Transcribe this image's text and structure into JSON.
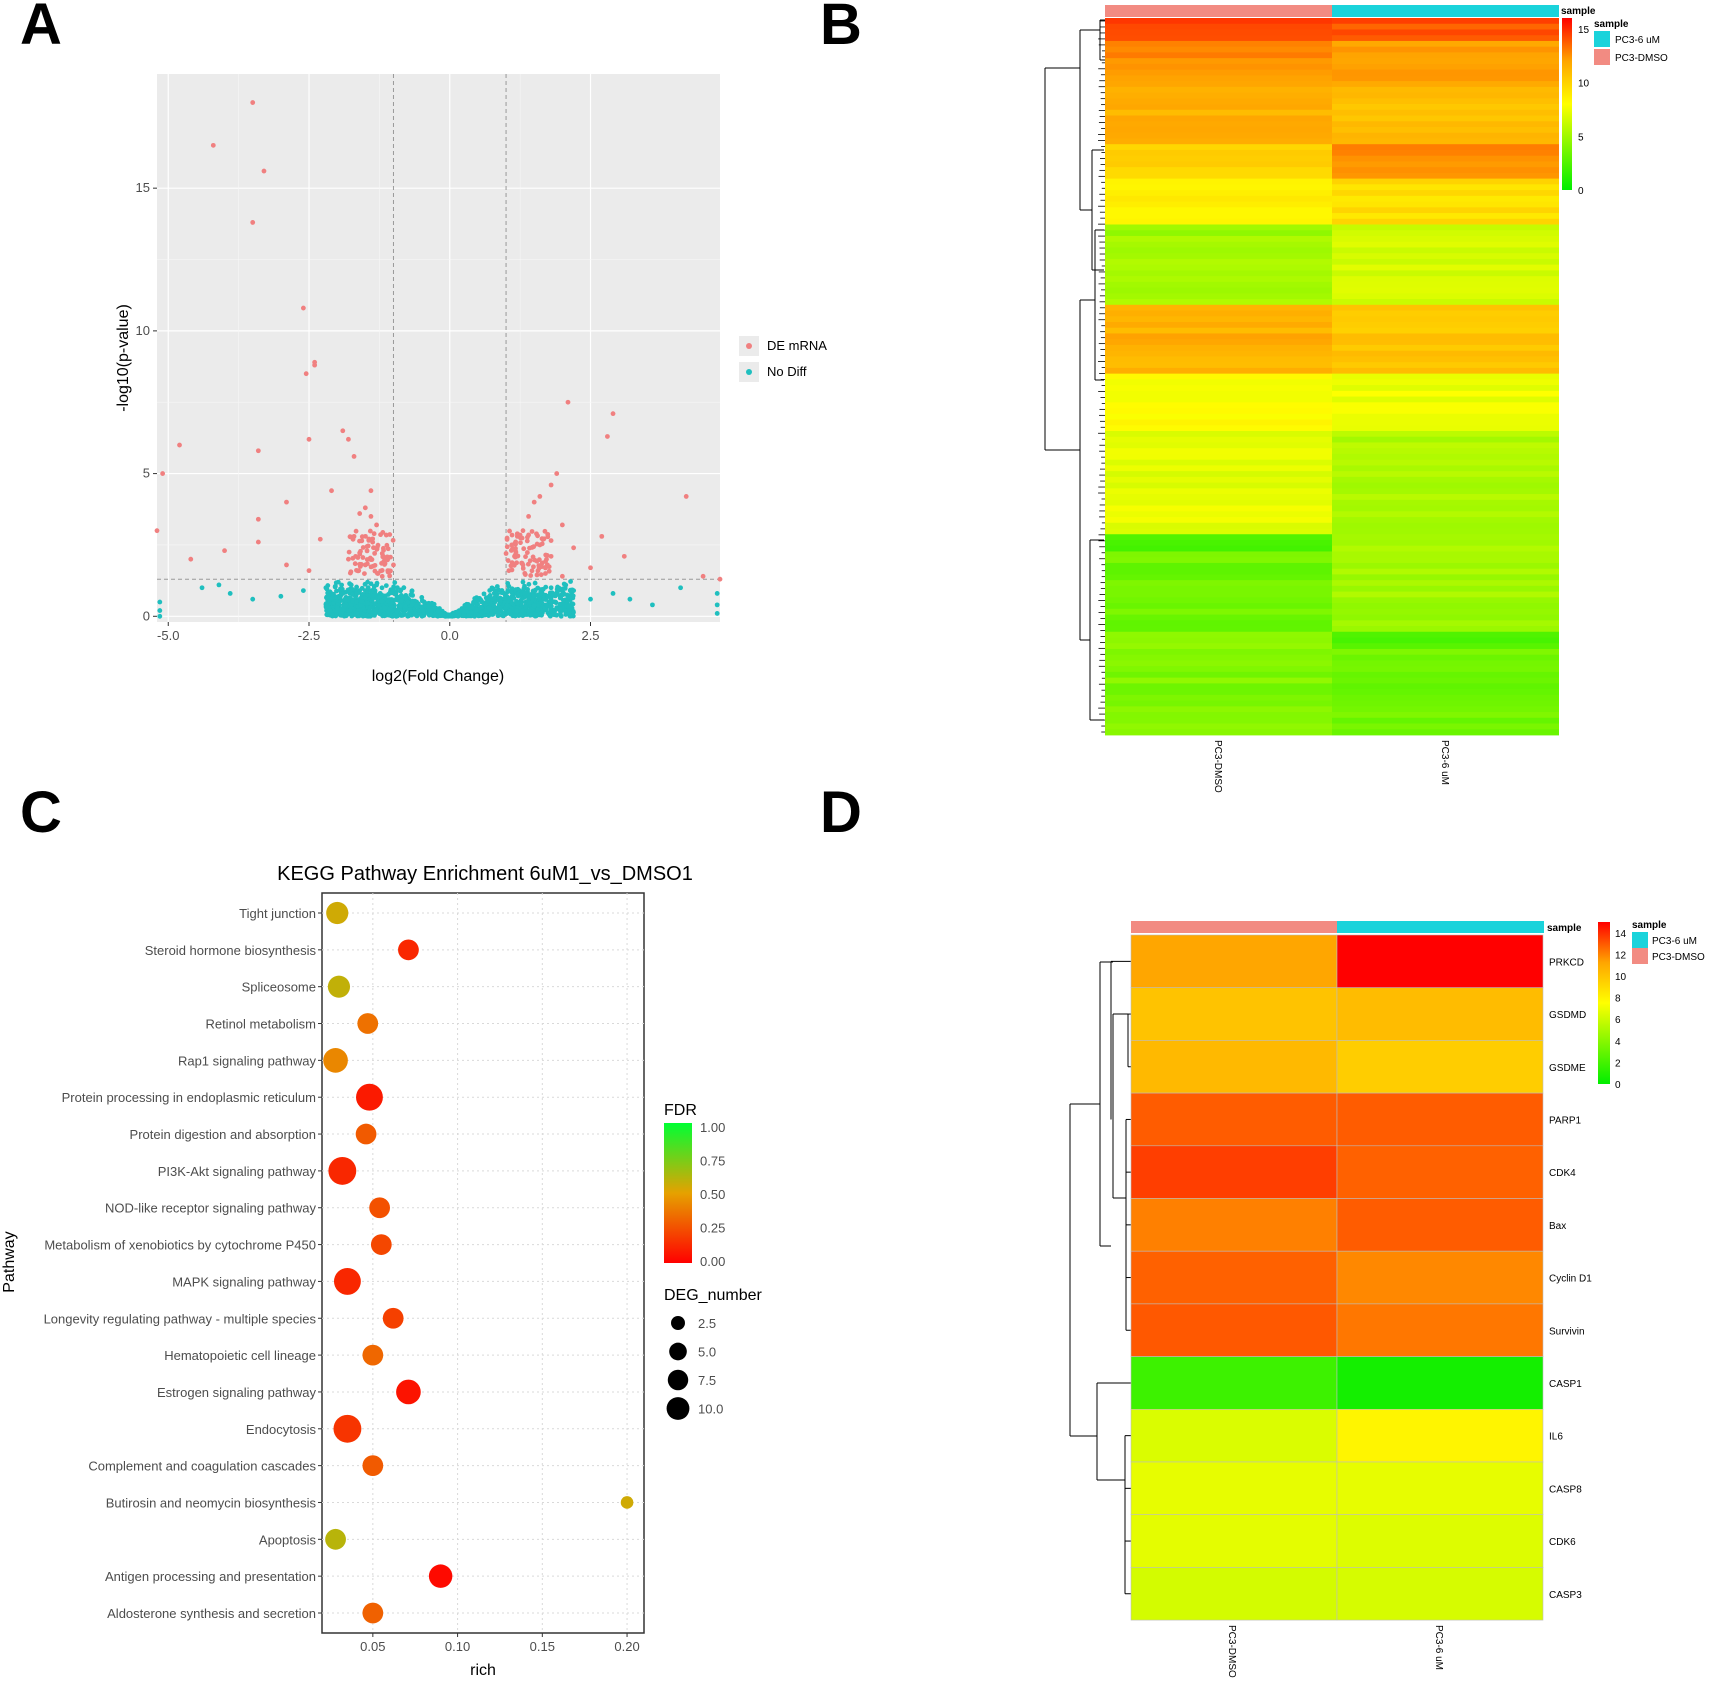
{
  "panels": {
    "a": "A",
    "b": "B",
    "c": "C",
    "d": "D"
  },
  "chart_data": [
    {
      "panel": "A",
      "type": "scatter",
      "xlabel": "log2(Fold Change)",
      "ylabel": "-log10(p-value)",
      "xlim": [
        -5.2,
        4.8
      ],
      "ylim": [
        -0.2,
        19
      ],
      "xticks": [
        -5.0,
        -2.5,
        0.0,
        2.5
      ],
      "xtick_labels": [
        "-5.0",
        "-2.5",
        "0.0",
        "2.5"
      ],
      "yticks": [
        0,
        5,
        10,
        15
      ],
      "ytick_labels": [
        "0",
        "5",
        "10",
        "15"
      ],
      "thresholds": {
        "fc": 1.0,
        "p": 1.3
      },
      "legend": [
        "DE mRNA",
        "No Diff"
      ],
      "colors": {
        "de": "#f08080",
        "nodiff": "#1fbfbf",
        "panel_bg": "#ebebeb",
        "grid": "#ffffff"
      },
      "de_points": [
        [
          -3.5,
          18.0
        ],
        [
          -4.2,
          16.5
        ],
        [
          -3.3,
          15.6
        ],
        [
          -3.5,
          13.8
        ],
        [
          -2.6,
          10.8
        ],
        [
          -2.4,
          8.8
        ],
        [
          -2.55,
          8.5
        ],
        [
          -2.4,
          8.9
        ],
        [
          -4.8,
          6.0
        ],
        [
          -3.4,
          5.8
        ],
        [
          -1.9,
          6.5
        ],
        [
          -1.8,
          6.2
        ],
        [
          -1.7,
          5.6
        ],
        [
          -2.5,
          6.2
        ],
        [
          -5.1,
          5.0
        ],
        [
          -2.1,
          4.4
        ],
        [
          -3.4,
          3.4
        ],
        [
          -2.9,
          4.0
        ],
        [
          -1.4,
          4.4
        ],
        [
          -1.5,
          3.8
        ],
        [
          -1.4,
          3.5
        ],
        [
          -1.3,
          3.2
        ],
        [
          -1.6,
          3.6
        ],
        [
          -1.7,
          2.8
        ],
        [
          -2.3,
          2.7
        ],
        [
          -3.4,
          2.6
        ],
        [
          -4.0,
          2.3
        ],
        [
          -4.6,
          2.0
        ],
        [
          -1.2,
          2.2
        ],
        [
          -1.1,
          1.6
        ],
        [
          -1.0,
          1.8
        ],
        [
          -1.2,
          1.4
        ],
        [
          -1.5,
          1.8
        ],
        [
          -2.5,
          1.6
        ],
        [
          -2.9,
          1.8
        ],
        [
          -5.2,
          3.0
        ],
        [
          -1.8,
          2.0
        ],
        [
          2.1,
          7.5
        ],
        [
          2.9,
          7.1
        ],
        [
          2.8,
          6.3
        ],
        [
          4.2,
          4.2
        ],
        [
          1.9,
          5.0
        ],
        [
          1.8,
          4.6
        ],
        [
          1.6,
          4.2
        ],
        [
          1.5,
          4.0
        ],
        [
          1.4,
          3.5
        ],
        [
          1.3,
          3.0
        ],
        [
          1.2,
          2.8
        ],
        [
          1.1,
          2.5
        ],
        [
          1.15,
          2.1
        ],
        [
          1.05,
          1.6
        ],
        [
          1.6,
          2.5
        ],
        [
          1.8,
          2.1
        ],
        [
          2.0,
          3.2
        ],
        [
          2.2,
          2.4
        ],
        [
          2.5,
          1.7
        ],
        [
          2.7,
          2.8
        ],
        [
          3.1,
          2.1
        ],
        [
          4.5,
          1.4
        ],
        [
          4.8,
          1.3
        ],
        [
          1.3,
          1.8
        ],
        [
          1.7,
          1.5
        ],
        [
          2.0,
          1.4
        ],
        [
          1.0,
          2.2
        ]
      ],
      "nodiff_points": [
        [
          -5.15,
          0.2
        ],
        [
          -5.15,
          0.5
        ],
        [
          -5.15,
          0.0
        ],
        [
          4.75,
          0.1
        ],
        [
          4.75,
          0.4
        ],
        [
          4.75,
          0.8
        ],
        [
          -4.1,
          1.1
        ],
        [
          -3.9,
          0.8
        ],
        [
          -3.5,
          0.6
        ],
        [
          -3.0,
          0.7
        ],
        [
          -2.6,
          0.9
        ],
        [
          -2.2,
          1.0
        ],
        [
          -1.9,
          0.8
        ],
        [
          -1.6,
          0.9
        ],
        [
          -1.3,
          1.1
        ],
        [
          3.2,
          0.6
        ],
        [
          2.9,
          0.8
        ],
        [
          2.5,
          0.6
        ],
        [
          2.2,
          0.9
        ],
        [
          1.8,
          1.0
        ],
        [
          1.5,
          0.7
        ],
        [
          1.3,
          1.2
        ],
        [
          3.6,
          0.4
        ],
        [
          4.1,
          1.0
        ],
        [
          -4.4,
          1.0
        ]
      ]
    },
    {
      "panel": "B",
      "type": "heatmap",
      "columns": [
        "PC3-DMSO",
        "PC3-6 uM"
      ],
      "legend_title": "sample",
      "legend_items": [
        "PC3-6 uM",
        "PC3-DMSO"
      ],
      "legend_colors": [
        "#1ad3db",
        "#f28b82"
      ],
      "colorbar_ticks": [
        15,
        10,
        5,
        0
      ],
      "colorbar_range": [
        0,
        16
      ],
      "bands": [
        {
          "rows": 4,
          "v1": 14.5,
          "v2": 14.0
        },
        {
          "rows": 8,
          "v1": 12.5,
          "v2": 12.0
        },
        {
          "rows": 10,
          "v1": 11.5,
          "v2": 11.0
        },
        {
          "rows": 6,
          "v1": 10.0,
          "v2": 12.5
        },
        {
          "rows": 8,
          "v1": 8.5,
          "v2": 9.5
        },
        {
          "rows": 14,
          "v1": 5.0,
          "v2": 6.8
        },
        {
          "rows": 12,
          "v1": 11.5,
          "v2": 10.5
        },
        {
          "rows": 10,
          "v1": 8.0,
          "v2": 7.5
        },
        {
          "rows": 18,
          "v1": 7.2,
          "v2": 5.5
        },
        {
          "rows": 3,
          "v1": 2.0,
          "v2": 5.5
        },
        {
          "rows": 14,
          "v1": 3.5,
          "v2": 5.0
        },
        {
          "rows": 3,
          "v1": 4.5,
          "v2": 2.5
        },
        {
          "rows": 15,
          "v1": 4.0,
          "v2": 3.5
        }
      ]
    },
    {
      "panel": "C",
      "type": "scatter",
      "title": "KEGG Pathway Enrichment  6uM1_vs_DMSO1",
      "xlabel": "rich",
      "ylabel": "Pathway",
      "xlim": [
        0.02,
        0.21
      ],
      "xticks": [
        0.05,
        0.1,
        0.15,
        0.2
      ],
      "xtick_labels": [
        "0.05",
        "0.10",
        "0.15",
        "0.20"
      ],
      "fdr_legend_title": "FDR",
      "fdr_ticks": [
        "1.00",
        "0.75",
        "0.50",
        "0.25",
        "0.00"
      ],
      "size_legend_title": "DEG_number",
      "size_legend": [
        "2.5",
        "5.0",
        "7.5",
        "10.0"
      ],
      "size_values": [
        2.5,
        5.0,
        7.5,
        10.0
      ],
      "pathways": [
        {
          "name": "Tight junction",
          "rich": 0.029,
          "fdr": 0.55,
          "deg": 6
        },
        {
          "name": "Steroid hormone biosynthesis",
          "rich": 0.071,
          "fdr": 0.12,
          "deg": 5
        },
        {
          "name": "Spliceosome",
          "rich": 0.03,
          "fdr": 0.58,
          "deg": 6
        },
        {
          "name": "Retinol metabolism",
          "rich": 0.047,
          "fdr": 0.35,
          "deg": 5
        },
        {
          "name": "Rap1 signaling pathway",
          "rich": 0.028,
          "fdr": 0.42,
          "deg": 8
        },
        {
          "name": "Protein processing in endoplasmic reticulum",
          "rich": 0.048,
          "fdr": 0.08,
          "deg": 10
        },
        {
          "name": "Protein digestion and absorption",
          "rich": 0.046,
          "fdr": 0.28,
          "deg": 5
        },
        {
          "name": "PI3K-Akt signaling pathway",
          "rich": 0.032,
          "fdr": 0.12,
          "deg": 11
        },
        {
          "name": "NOD-like receptor signaling pathway",
          "rich": 0.054,
          "fdr": 0.25,
          "deg": 5
        },
        {
          "name": "Metabolism of xenobiotics by cytochrome P450",
          "rich": 0.055,
          "fdr": 0.22,
          "deg": 5
        },
        {
          "name": "MAPK signaling pathway",
          "rich": 0.035,
          "fdr": 0.12,
          "deg": 10
        },
        {
          "name": "Longevity regulating pathway - multiple species",
          "rich": 0.062,
          "fdr": 0.2,
          "deg": 5
        },
        {
          "name": "Hematopoietic cell lineage",
          "rich": 0.05,
          "fdr": 0.32,
          "deg": 5
        },
        {
          "name": "Estrogen signaling pathway",
          "rich": 0.071,
          "fdr": 0.06,
          "deg": 8
        },
        {
          "name": "Endocytosis",
          "rich": 0.035,
          "fdr": 0.16,
          "deg": 11
        },
        {
          "name": "Complement and coagulation cascades",
          "rich": 0.05,
          "fdr": 0.28,
          "deg": 5
        },
        {
          "name": "Butirosin and neomycin biosynthesis",
          "rich": 0.2,
          "fdr": 0.55,
          "deg": 1
        },
        {
          "name": "Apoptosis",
          "rich": 0.028,
          "fdr": 0.6,
          "deg": 5
        },
        {
          "name": "Antigen processing and presentation",
          "rich": 0.09,
          "fdr": 0.03,
          "deg": 7
        },
        {
          "name": "Aldosterone synthesis and secretion",
          "rich": 0.05,
          "fdr": 0.3,
          "deg": 5
        }
      ]
    },
    {
      "panel": "D",
      "type": "heatmap",
      "columns": [
        "PC3-DMSO",
        "PC3-6 uM"
      ],
      "rows": [
        "PRKCD",
        "GSDMD",
        "GSDME",
        "PARP1",
        "CDK4",
        "Bax",
        "Cyclin D1",
        "Survivin",
        "CASP1",
        "IL6",
        "CASP8",
        "CDK6",
        "CASP3"
      ],
      "values": [
        [
          11.2,
          15.5
        ],
        [
          10.0,
          10.3
        ],
        [
          10.4,
          9.6
        ],
        [
          12.9,
          12.9
        ],
        [
          13.6,
          12.8
        ],
        [
          12.1,
          12.9
        ],
        [
          12.8,
          11.9
        ],
        [
          13.0,
          12.3
        ],
        [
          1.8,
          0.6
        ],
        [
          6.4,
          7.9
        ],
        [
          6.8,
          6.8
        ],
        [
          6.7,
          6.5
        ],
        [
          6.2,
          6.3
        ]
      ],
      "legend_title": "sample",
      "legend_items": [
        "PC3-6 uM",
        "PC3-DMSO"
      ],
      "legend_colors": [
        "#1ad3db",
        "#f28b82"
      ],
      "colorbar_ticks": [
        14,
        12,
        10,
        8,
        6,
        4,
        2,
        0
      ],
      "colorbar_range": [
        0,
        15
      ]
    }
  ]
}
